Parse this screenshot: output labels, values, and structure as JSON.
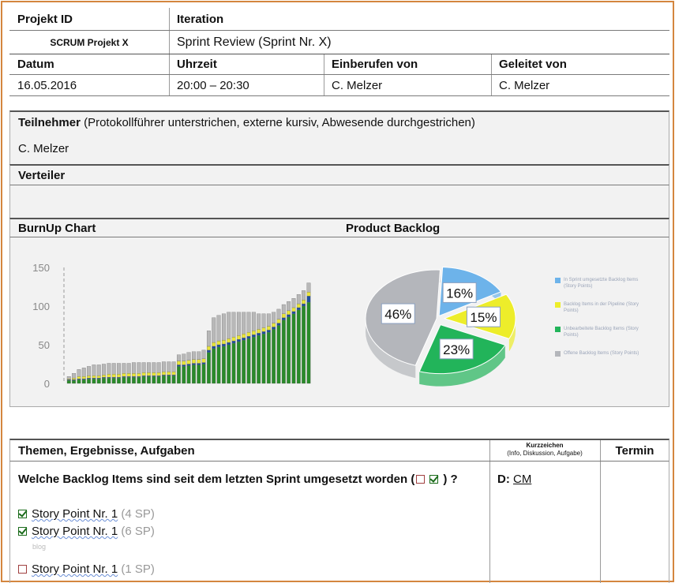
{
  "header": {
    "projekt_id_label": "Projekt ID",
    "iteration_label": "Iteration",
    "projekt_id_value": "SCRUM Projekt X",
    "iteration_value": "Sprint Review (Sprint Nr. X)",
    "datum_label": "Datum",
    "uhrzeit_label": "Uhrzeit",
    "einberufen_label": "Einberufen von",
    "geleitet_label": "Geleitet von",
    "datum_value": "16.05.2016",
    "uhrzeit_value": "20:00 – 20:30",
    "einberufen_value": "C. Melzer",
    "geleitet_value": "C. Melzer"
  },
  "teilnehmer": {
    "label": "Teilnehmer",
    "note": "(Protokollführer unterstrichen, externe kursiv, Abwesende durchgestrichen)",
    "value": "C. Melzer"
  },
  "verteiler": {
    "label": "Verteiler"
  },
  "charts_section": {
    "burnup_title": "BurnUp Chart",
    "backlog_title": "Product Backlog"
  },
  "chart_data": [
    {
      "type": "bar",
      "stacked": true,
      "title": "BurnUp Chart",
      "yticks": [
        "150",
        "100",
        "50",
        "0"
      ],
      "ylim": [
        0,
        150
      ],
      "series": [
        {
          "color": "#2a8a2a",
          "values": [
            4,
            4,
            5,
            5,
            6,
            6,
            6,
            7,
            7,
            7,
            7,
            8,
            8,
            8,
            8,
            9,
            9,
            9,
            9,
            10,
            10,
            10,
            22,
            22,
            23,
            24,
            24,
            25,
            40,
            45,
            47,
            48,
            50,
            52,
            54,
            56,
            58,
            60,
            62,
            64,
            66,
            70,
            75,
            82,
            86,
            90,
            95,
            100,
            105
          ]
        },
        {
          "color": "#1f4f9c",
          "values": [
            1,
            1,
            1,
            1,
            1,
            1,
            1,
            1,
            1,
            1,
            1,
            1,
            1,
            1,
            1,
            1,
            1,
            1,
            1,
            1,
            1,
            1,
            2,
            2,
            2,
            2,
            2,
            2,
            3,
            3,
            3,
            3,
            3,
            3,
            3,
            3,
            3,
            3,
            3,
            3,
            3,
            3,
            3,
            3,
            3,
            3,
            3,
            3,
            8
          ]
        },
        {
          "color": "#e8e43a",
          "values": [
            1,
            2,
            3,
            3,
            3,
            3,
            3,
            3,
            4,
            4,
            4,
            4,
            4,
            4,
            4,
            4,
            4,
            4,
            4,
            4,
            4,
            4,
            5,
            5,
            5,
            5,
            5,
            5,
            5,
            5,
            5,
            5,
            5,
            5,
            5,
            5,
            5,
            5,
            5,
            5,
            5,
            5,
            5,
            5,
            5,
            5,
            5,
            5,
            5
          ]
        },
        {
          "color": "#b8b8b8",
          "values": [
            3,
            6,
            9,
            11,
            12,
            14,
            14,
            14,
            14,
            14,
            14,
            13,
            13,
            14,
            14,
            13,
            13,
            13,
            13,
            13,
            13,
            13,
            8,
            9,
            10,
            10,
            10,
            11,
            20,
            32,
            33,
            34,
            34,
            32,
            30,
            28,
            26,
            24,
            20,
            18,
            16,
            14,
            13,
            12,
            12,
            12,
            12,
            12,
            12
          ]
        }
      ]
    },
    {
      "type": "pie",
      "title": "Product Backlog",
      "slices": [
        {
          "value": 16,
          "label": "16%",
          "color": "#6db3ea"
        },
        {
          "value": 15,
          "label": "15%",
          "color": "#eded2a"
        },
        {
          "value": 23,
          "label": "23%",
          "color": "#22b45a"
        },
        {
          "value": 46,
          "label": "46%",
          "color": "#b4b6bb"
        }
      ],
      "legend": [
        {
          "color": "#6db3ea",
          "text": "In Sprint umgesetzte Backlog Items (Story Points)"
        },
        {
          "color": "#eded2a",
          "text": "Backlog Items in der Pipeline (Story Points)"
        },
        {
          "color": "#22b45a",
          "text": "Unbearbeitete Backlog Items (Story Points)"
        },
        {
          "color": "#b4b6bb",
          "text": "Offene Backlog Items (Story Points)"
        }
      ]
    }
  ],
  "themen": {
    "header": "Themen, Ergebnisse, Aufgaben",
    "kurz_header": "Kurzzeichen",
    "kurz_sub": "(Info, Diskussion, Aufgabe)",
    "termin_header": "Termin",
    "question": "Welche Backlog Items sind seit dem letzten Sprint umgesetzt worden (",
    "question_end": ") ?",
    "kurz_value_prefix": "D:",
    "kurz_value": "CM",
    "items": [
      {
        "label": "Story Point Nr. 1",
        "sp": "(4 SP)"
      },
      {
        "label": "Story Point Nr. 1",
        "sp": "(6 SP)"
      },
      {
        "label": "Story Point Nr. 1",
        "sp": "(1 SP)"
      }
    ],
    "note": "blog"
  }
}
